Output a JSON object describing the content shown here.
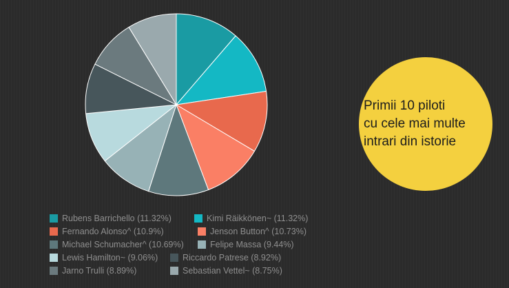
{
  "chart_data": {
    "type": "pie",
    "title": "Primii 10 piloti\ncu cele mai multe\nintrari din istorie",
    "legend_position": "bottom",
    "slices": [
      {
        "label": "Rubens Barrichello (11.32%)",
        "value": 11.32,
        "color": "#1a9ba3"
      },
      {
        "label": "Kimi Räikkönen~ (11.32%)",
        "value": 11.32,
        "color": "#14b8c4"
      },
      {
        "label": "Fernando Alonso^ (10.9%)",
        "value": 10.9,
        "color": "#e8694d"
      },
      {
        "label": "Jenson Button^ (10.73%)",
        "value": 10.73,
        "color": "#fa7f65"
      },
      {
        "label": "Michael Schumacher^ (10.69%)",
        "value": 10.69,
        "color": "#5e787c"
      },
      {
        "label": "Felipe Massa (9.44%)",
        "value": 9.44,
        "color": "#97b2b6"
      },
      {
        "label": "Lewis Hamilton~ (9.06%)",
        "value": 9.06,
        "color": "#b8dade"
      },
      {
        "label": "Riccardo Patrese (8.92%)",
        "value": 8.92,
        "color": "#47565b"
      },
      {
        "label": "Jarno Trulli (8.89%)",
        "value": 8.89,
        "color": "#6b7a7e"
      },
      {
        "label": "Sebastian Vettel~ (8.75%)",
        "value": 8.75,
        "color": "#9aa9ad"
      }
    ]
  }
}
